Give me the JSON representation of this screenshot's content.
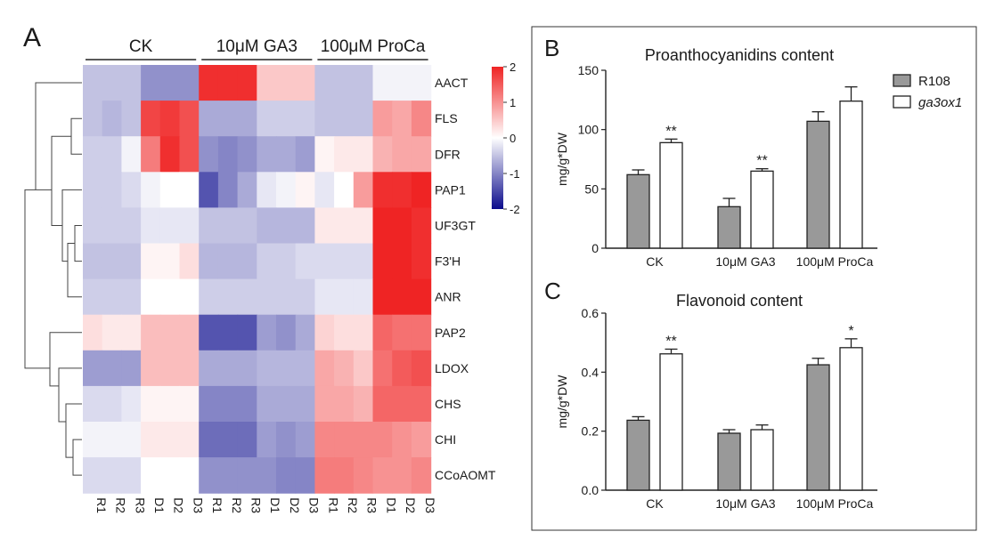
{
  "panel_labels": {
    "a": "A",
    "b": "B",
    "c": "C"
  },
  "chart_data": [
    {
      "type": "heatmap",
      "panel": "A",
      "group_labels": [
        "CK",
        "10μM GA3",
        "100μM ProCa"
      ],
      "columns": [
        "R1",
        "R2",
        "R3",
        "D1",
        "D2",
        "D3",
        "R1",
        "R2",
        "R3",
        "D1",
        "D2",
        "D3",
        "R1",
        "R2",
        "R3",
        "D1",
        "D2",
        "D3"
      ],
      "rows": [
        "AACT",
        "FLS",
        "DFR",
        "PAP1",
        "UF3GT",
        "F3'H",
        "ANR",
        "PAP2",
        "LDOX",
        "CHS",
        "CHI",
        "CCoAOMT"
      ],
      "values": [
        [
          -0.5,
          -0.5,
          -0.5,
          -0.9,
          -0.9,
          -0.9,
          1.9,
          1.9,
          1.9,
          0.5,
          0.5,
          0.5,
          -0.5,
          -0.5,
          -0.5,
          -0.1,
          -0.1,
          -0.1
        ],
        [
          -0.5,
          -0.6,
          -0.5,
          1.7,
          1.8,
          1.6,
          -0.7,
          -0.7,
          -0.7,
          -0.4,
          -0.4,
          -0.4,
          -0.5,
          -0.5,
          -0.5,
          0.9,
          0.8,
          1.1
        ],
        [
          -0.4,
          -0.4,
          -0.1,
          1.2,
          1.9,
          1.6,
          -0.9,
          -1.0,
          -0.9,
          -0.7,
          -0.7,
          -0.8,
          0.1,
          0.2,
          0.2,
          0.7,
          0.8,
          0.8
        ],
        [
          -0.4,
          -0.4,
          -0.3,
          -0.1,
          0.0,
          0.0,
          -1.4,
          -1.0,
          -0.7,
          -0.2,
          -0.1,
          0.1,
          -0.2,
          0.0,
          0.9,
          1.9,
          1.9,
          2.1
        ],
        [
          -0.4,
          -0.4,
          -0.4,
          -0.2,
          -0.2,
          -0.2,
          -0.5,
          -0.5,
          -0.5,
          -0.6,
          -0.6,
          -0.6,
          0.2,
          0.2,
          0.2,
          2.0,
          2.0,
          1.9
        ],
        [
          -0.5,
          -0.5,
          -0.5,
          0.1,
          0.1,
          0.3,
          -0.6,
          -0.6,
          -0.6,
          -0.4,
          -0.4,
          -0.3,
          -0.3,
          -0.3,
          -0.3,
          2.0,
          2.0,
          1.9
        ],
        [
          -0.4,
          -0.4,
          -0.4,
          0.0,
          0.0,
          0.0,
          -0.4,
          -0.4,
          -0.4,
          -0.4,
          -0.4,
          -0.4,
          -0.2,
          -0.2,
          -0.2,
          2.0,
          2.0,
          2.2
        ],
        [
          0.3,
          0.2,
          0.2,
          0.6,
          0.6,
          0.6,
          -1.4,
          -1.4,
          -1.4,
          -0.8,
          -0.9,
          -0.7,
          0.4,
          0.3,
          0.3,
          1.4,
          1.3,
          1.3
        ],
        [
          -0.8,
          -0.8,
          -0.8,
          0.6,
          0.6,
          0.6,
          -0.7,
          -0.7,
          -0.7,
          -0.6,
          -0.6,
          -0.6,
          0.8,
          0.7,
          0.5,
          1.3,
          1.5,
          1.6
        ],
        [
          -0.3,
          -0.3,
          -0.2,
          0.1,
          0.1,
          0.1,
          -1.0,
          -1.0,
          -1.0,
          -0.7,
          -0.7,
          -0.7,
          0.8,
          0.8,
          0.7,
          1.4,
          1.4,
          1.4
        ],
        [
          -0.1,
          -0.1,
          -0.1,
          0.2,
          0.2,
          0.2,
          -1.2,
          -1.2,
          -1.2,
          -0.8,
          -0.9,
          -0.8,
          1.1,
          1.1,
          1.1,
          1.1,
          1.0,
          0.9
        ],
        [
          -0.3,
          -0.3,
          -0.3,
          0.0,
          0.0,
          0.0,
          -0.9,
          -0.9,
          -0.9,
          -0.9,
          -1.0,
          -1.0,
          1.2,
          1.2,
          1.1,
          1.0,
          1.0,
          1.1
        ]
      ],
      "scale": {
        "min": -2,
        "max": 2,
        "ticks": [
          "2",
          "1",
          "0",
          "-1",
          "-2"
        ],
        "low_color": "#0b0b8c",
        "mid_color": "#ffffff",
        "high_color": "#ef2424"
      }
    },
    {
      "type": "bar",
      "panel": "B",
      "title": "Proanthocyanidins content",
      "ylabel": "mg/g*DW",
      "categories": [
        "CK",
        "10μM GA3",
        "100μM ProCa"
      ],
      "ylim": [
        0,
        150
      ],
      "yticks": [
        "0",
        "50",
        "100",
        "150"
      ],
      "series": [
        {
          "name": "R108",
          "color": "#999999",
          "values": [
            62,
            35,
            107
          ],
          "errors": [
            4,
            7,
            8
          ]
        },
        {
          "name": "ga3ox1",
          "color": "#ffffff",
          "values": [
            89,
            65,
            124
          ],
          "errors": [
            3,
            2,
            12
          ]
        }
      ],
      "significance": [
        "**",
        "**",
        ""
      ]
    },
    {
      "type": "bar",
      "panel": "C",
      "title": "Flavonoid content",
      "ylabel": "mg/g*DW",
      "categories": [
        "CK",
        "10μM GA3",
        "100μM ProCa"
      ],
      "ylim": [
        0,
        0.6
      ],
      "yticks": [
        "0.0",
        "0.2",
        "0.4",
        "0.6"
      ],
      "series": [
        {
          "name": "R108",
          "color": "#999999",
          "values": [
            0.237,
            0.193,
            0.425
          ],
          "errors": [
            0.012,
            0.012,
            0.022
          ]
        },
        {
          "name": "ga3ox1",
          "color": "#ffffff",
          "values": [
            0.462,
            0.205,
            0.483
          ],
          "errors": [
            0.016,
            0.016,
            0.03
          ]
        }
      ],
      "significance": [
        "**",
        "",
        "*"
      ]
    }
  ]
}
